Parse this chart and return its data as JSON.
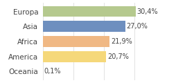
{
  "categories": [
    "Europa",
    "Asia",
    "Africa",
    "America",
    "Oceania"
  ],
  "values": [
    30.4,
    27.0,
    21.9,
    20.7,
    0.1
  ],
  "labels": [
    "30,4%",
    "27,0%",
    "21,9%",
    "20,7%",
    "0,1%"
  ],
  "bar_colors": [
    "#b5c98e",
    "#6e8fbf",
    "#f0b884",
    "#f5d87a",
    "#f5e88a"
  ],
  "background_color": "#ffffff",
  "xlim": [
    0,
    38
  ],
  "bar_height": 0.72,
  "label_fontsize": 7,
  "tick_fontsize": 7.5,
  "grid_color": "#dddddd",
  "grid_ticks": [
    0,
    10,
    20,
    30
  ]
}
